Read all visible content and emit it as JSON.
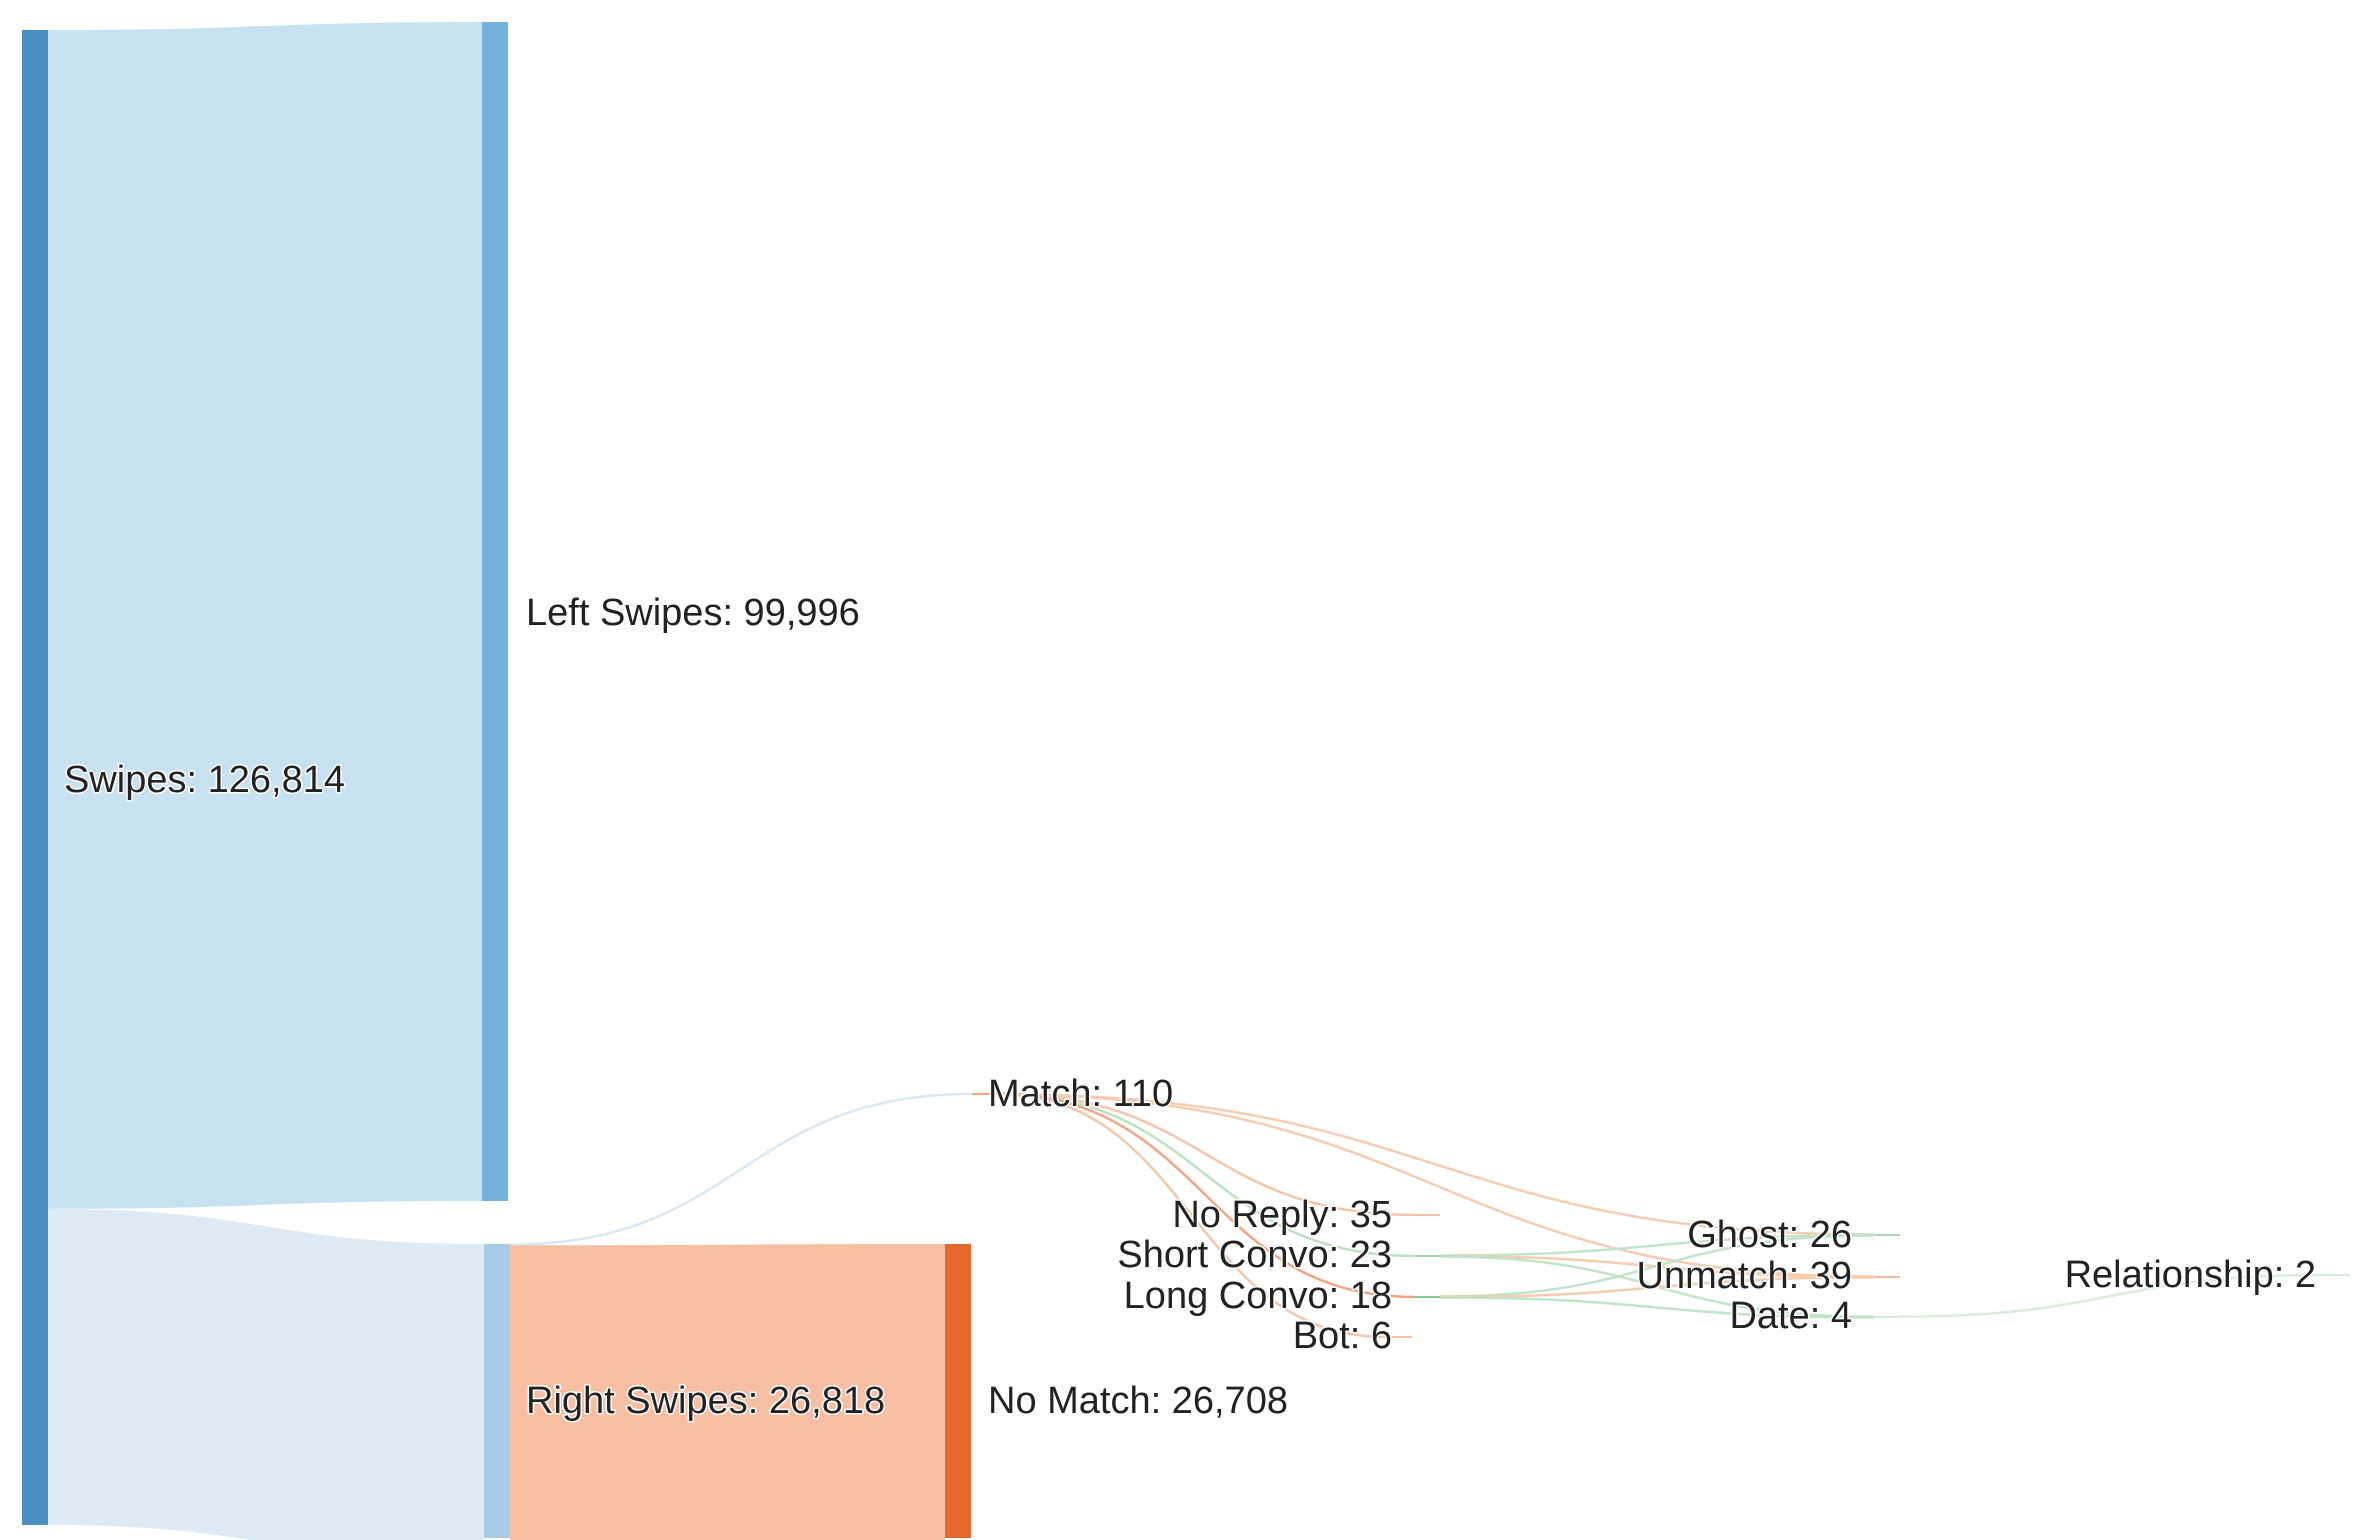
{
  "chart_data": {
    "type": "sankey",
    "title": "",
    "nodes": [
      {
        "id": "swipes",
        "label": "Swipes: 126,814",
        "name": "Swipes",
        "value": 126814,
        "color": "#4a8fc4"
      },
      {
        "id": "left",
        "label": "Left Swipes: 99,996",
        "name": "Left Swipes",
        "value": 99996,
        "color": "#76b3dc"
      },
      {
        "id": "right",
        "label": "Right Swipes: 26,818",
        "name": "Right Swipes",
        "value": 26818,
        "color": "#a7cbe4"
      },
      {
        "id": "match",
        "label": "Match: 110",
        "name": "Match",
        "value": 110,
        "color": "#f08a4b"
      },
      {
        "id": "nomatch",
        "label": "No Match: 26,708",
        "name": "No Match",
        "value": 26708,
        "color": "#e5682a"
      },
      {
        "id": "noreply",
        "label": "No Reply: 35",
        "name": "No Reply",
        "value": 35,
        "color": "#f5a57a"
      },
      {
        "id": "short",
        "label": "Short Convo: 23",
        "name": "Short Convo",
        "value": 23,
        "color": "#8ccf9b"
      },
      {
        "id": "long",
        "label": "Long Convo: 18",
        "name": "Long Convo",
        "value": 18,
        "color": "#5bb670"
      },
      {
        "id": "bot",
        "label": "Bot: 6",
        "name": "Bot",
        "value": 6,
        "color": "#f5a57a"
      },
      {
        "id": "ghost",
        "label": "Ghost: 26",
        "name": "Ghost",
        "value": 26,
        "color": "#8ccf9b"
      },
      {
        "id": "unmatch",
        "label": "Unmatch: 39",
        "name": "Unmatch",
        "value": 39,
        "color": "#f5a57a"
      },
      {
        "id": "date",
        "label": "Date: 4",
        "name": "Date",
        "value": 4,
        "color": "#c9e6cf"
      },
      {
        "id": "relationship",
        "label": "Relationship: 2",
        "name": "Relationship",
        "value": 2,
        "color": "#c9e6cf"
      }
    ],
    "links": [
      {
        "source": "swipes",
        "target": "left",
        "value": 99996,
        "color": "#c4dff0"
      },
      {
        "source": "swipes",
        "target": "right",
        "value": 26818,
        "color": "#d9e9f4"
      },
      {
        "source": "right",
        "target": "match",
        "value": 110,
        "color": "#d6e7f3"
      },
      {
        "source": "right",
        "target": "nomatch",
        "value": 26708,
        "color": "#f5bb9e"
      },
      {
        "source": "match",
        "target": "noreply",
        "value": 35,
        "color": "#f6c2a2"
      },
      {
        "source": "match",
        "target": "short",
        "value": 23,
        "color": "#b6dfbf"
      },
      {
        "source": "match",
        "target": "long",
        "value": 18,
        "color": "#f2a07a"
      },
      {
        "source": "match",
        "target": "bot",
        "value": 6,
        "color": "#f6c2a2"
      },
      {
        "source": "match",
        "target": "ghost",
        "value": 14,
        "color": "#f6c9ad"
      },
      {
        "source": "match",
        "target": "unmatch",
        "value": 14,
        "color": "#f6c9ad"
      },
      {
        "source": "short",
        "target": "ghost",
        "value": 8,
        "color": "#bfe3c6"
      },
      {
        "source": "short",
        "target": "unmatch",
        "value": 12,
        "color": "#f6c9ad"
      },
      {
        "source": "short",
        "target": "date",
        "value": 3,
        "color": "#bfe3c6"
      },
      {
        "source": "long",
        "target": "ghost",
        "value": 4,
        "color": "#bfe3c6"
      },
      {
        "source": "long",
        "target": "unmatch",
        "value": 13,
        "color": "#f6c9ad"
      },
      {
        "source": "long",
        "target": "date",
        "value": 1,
        "color": "#bfe3c6"
      },
      {
        "source": "date",
        "target": "relationship",
        "value": 2,
        "color": "#d6ecd9"
      }
    ]
  }
}
